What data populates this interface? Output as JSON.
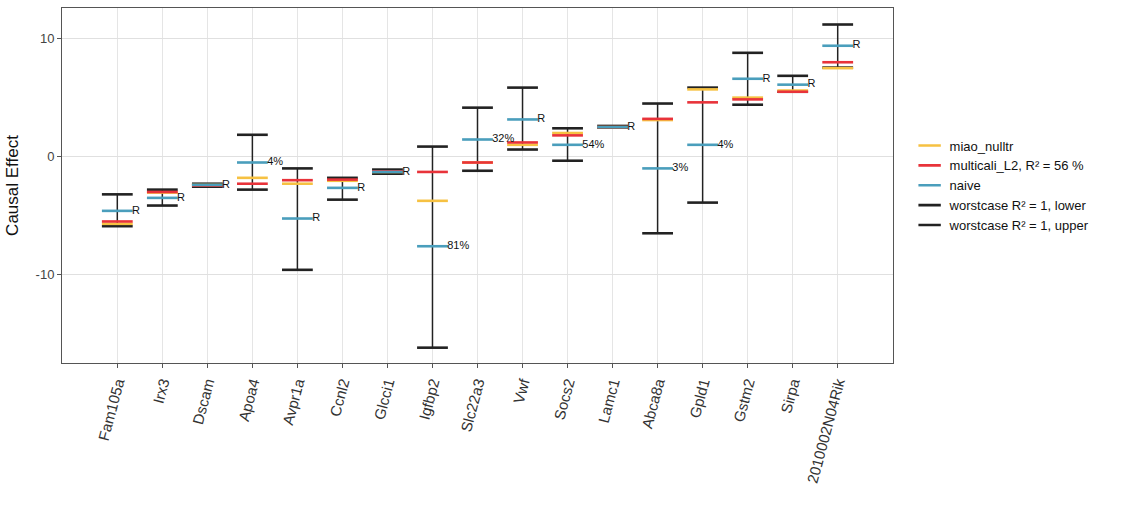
{
  "chart_data": {
    "type": "scatter",
    "y_label": "Causal Effect",
    "categories": [
      "Fam105a",
      "Irx3",
      "Dscam",
      "Apoa4",
      "Avpr1a",
      "Ccnl2",
      "Glcci1",
      "Igfbp2",
      "Slc22a3",
      "Vwf",
      "Socs2",
      "Lamc1",
      "Abca8a",
      "Gpld1",
      "Gstm2",
      "Sirpa",
      "2010002N04Rik"
    ],
    "ylim": [
      -17.5,
      12.6
    ],
    "yticks": [
      -10,
      0,
      10
    ],
    "grid": true,
    "legend": "right",
    "series": [
      {
        "name": "miao_nulltr",
        "color": "#F6C142",
        "marker": "line-ew",
        "values": [
          -5.7,
          -3.05,
          -2.4,
          -1.8,
          -2.3,
          -2.05,
          -1.3,
          -3.75,
          -0.5,
          1.0,
          2.0,
          2.5,
          3.1,
          5.7,
          5.0,
          5.6,
          7.5
        ]
      },
      {
        "name": "multicali_L2, R² = 56 %",
        "color": "#E8333A",
        "marker": "line-ew",
        "values": [
          -5.5,
          -3.0,
          -2.45,
          -2.3,
          -2.0,
          -1.95,
          -1.25,
          -1.3,
          -0.5,
          1.2,
          1.8,
          2.5,
          3.2,
          4.6,
          4.85,
          5.5,
          8.0
        ]
      },
      {
        "name": "naive",
        "color": "#4A9EBC",
        "marker": "line-ew",
        "values": [
          -4.6,
          -3.5,
          -2.4,
          -0.5,
          -5.25,
          -2.65,
          -1.3,
          -7.6,
          1.45,
          3.15,
          1.0,
          2.5,
          -1.0,
          1.0,
          6.6,
          6.1,
          9.4
        ],
        "point_labels": [
          "R",
          "R",
          "R",
          "4%",
          "R",
          "R",
          "R",
          "81%",
          "32%",
          "R",
          "54%",
          "R",
          "3%",
          "4%",
          "R",
          "R",
          "R"
        ]
      },
      {
        "name": "worstcase R² = 1, lower",
        "color": "#222222",
        "marker": "line-ew",
        "values": [
          -5.9,
          -4.15,
          -2.55,
          -2.8,
          -9.6,
          -3.65,
          -1.45,
          -16.2,
          -1.2,
          0.6,
          -0.35,
          2.45,
          -6.5,
          -3.9,
          4.4,
          5.5,
          7.55
        ]
      },
      {
        "name": "worstcase R² = 1, upper",
        "color": "#222222",
        "marker": "line-ew",
        "values": [
          -3.2,
          -2.8,
          -2.3,
          1.85,
          -1.0,
          -1.8,
          -1.1,
          0.85,
          4.15,
          5.85,
          2.4,
          2.6,
          4.5,
          5.85,
          8.8,
          6.85,
          11.2
        ]
      }
    ]
  }
}
